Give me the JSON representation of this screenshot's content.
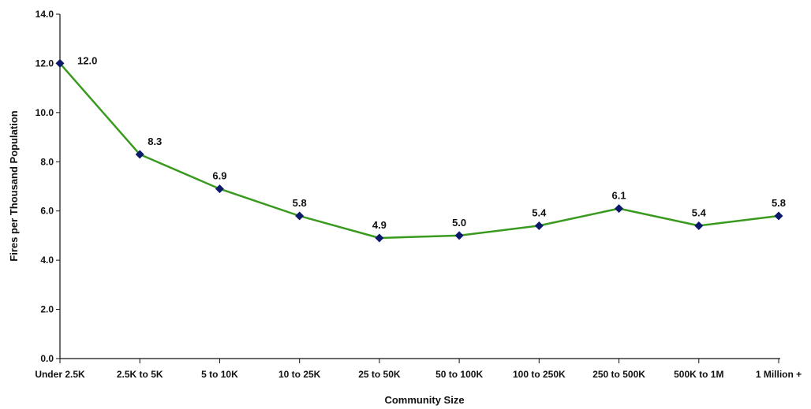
{
  "chart_data": {
    "type": "line",
    "title": "",
    "xlabel": "Community Size",
    "ylabel": "Fires per Thousand Population",
    "categories": [
      "Under 2.5K",
      "2.5K to 5K",
      "5 to 10K",
      "10 to 25K",
      "25 to 50K",
      "50 to 100K",
      "100 to 250K",
      "250 to 500K",
      "500K to 1M",
      "1 Million +"
    ],
    "values": [
      12.0,
      8.3,
      6.9,
      5.8,
      4.9,
      5.0,
      5.4,
      6.1,
      5.4,
      5.8
    ],
    "data_labels": [
      "12.0",
      "8.3",
      "6.9",
      "5.8",
      "4.9",
      "5.0",
      "5.4",
      "6.1",
      "5.4",
      "5.8"
    ],
    "ylim": [
      0,
      14
    ],
    "yticks": [
      "0.0",
      "2.0",
      "4.0",
      "6.0",
      "8.0",
      "10.0",
      "12.0",
      "14.0"
    ],
    "grid": false,
    "legend": "none",
    "line_color": "#3a9a1f",
    "marker_color": "#0d1a6b",
    "marker": "diamond"
  }
}
